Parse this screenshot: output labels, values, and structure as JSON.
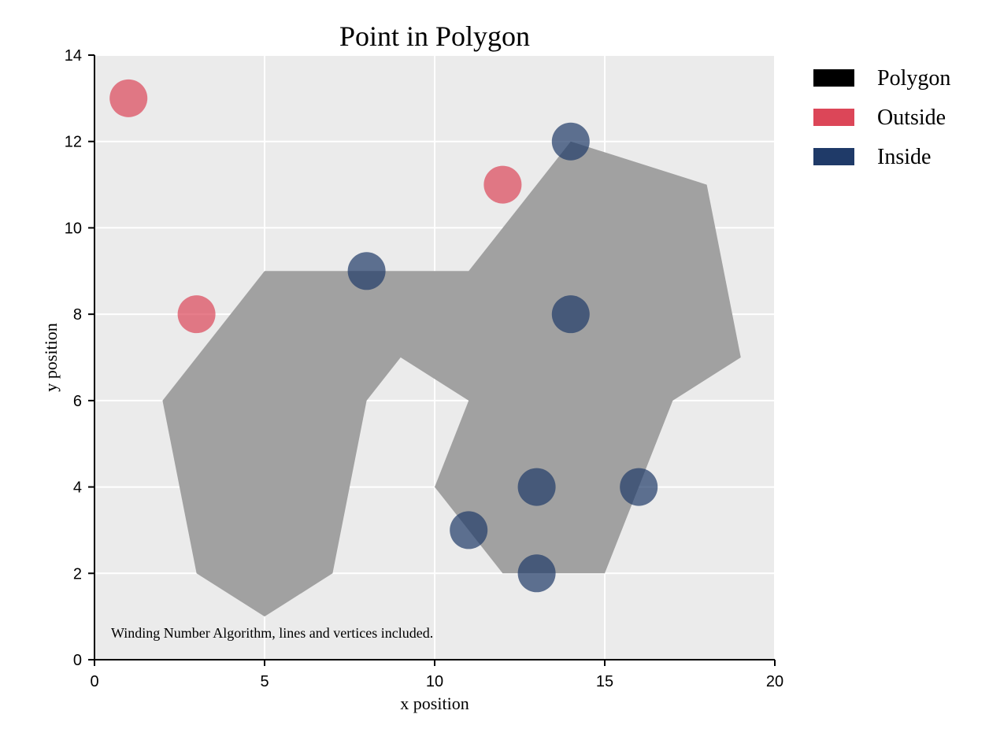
{
  "chart_data": {
    "type": "scatter",
    "title": "Point in Polygon",
    "xlabel": "x position",
    "ylabel": "y position",
    "xlim": [
      0,
      20
    ],
    "ylim": [
      0,
      14
    ],
    "x_ticks": [
      0,
      5,
      10,
      15,
      20
    ],
    "y_ticks": [
      0,
      2,
      4,
      6,
      8,
      10,
      12,
      14
    ],
    "grid": true,
    "legend_position": "right",
    "annotation": "Winding Number Algorithm, lines and vertices included.",
    "polygon": {
      "name": "Polygon",
      "legend_color": "#000000",
      "fill_color": "#a1a1a1",
      "vertices": [
        [
          5,
          9
        ],
        [
          11,
          9
        ],
        [
          14,
          12
        ],
        [
          18,
          11
        ],
        [
          19,
          7
        ],
        [
          17,
          6
        ],
        [
          15,
          2
        ],
        [
          12,
          2
        ],
        [
          10,
          4
        ],
        [
          11,
          6
        ],
        [
          9,
          7
        ],
        [
          8,
          6
        ],
        [
          7,
          2
        ],
        [
          5,
          1
        ],
        [
          3,
          2
        ],
        [
          2,
          6
        ]
      ]
    },
    "series": [
      {
        "name": "Outside",
        "color": "#dc4658",
        "points": [
          [
            1,
            13
          ],
          [
            3,
            8
          ],
          [
            12,
            11
          ]
        ]
      },
      {
        "name": "Inside",
        "color": "#1f3a68",
        "points": [
          [
            14,
            12
          ],
          [
            8,
            9
          ],
          [
            14,
            8
          ],
          [
            13,
            4
          ],
          [
            16,
            4
          ],
          [
            11,
            3
          ],
          [
            13,
            2
          ]
        ]
      }
    ]
  }
}
